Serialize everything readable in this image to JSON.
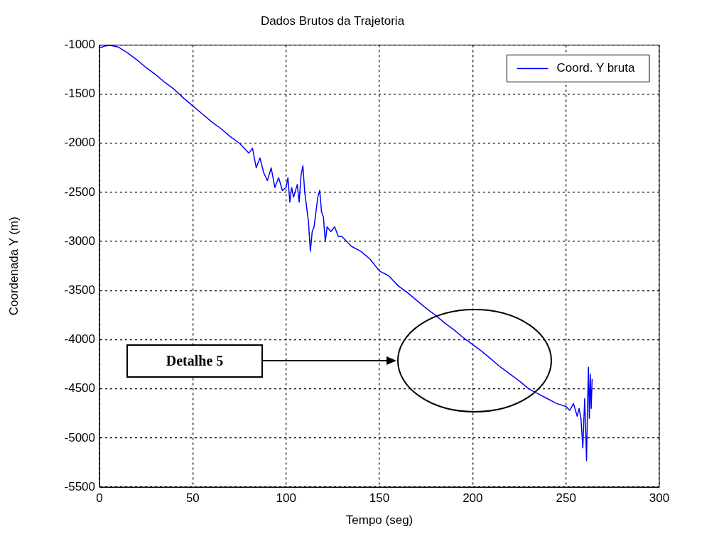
{
  "chart_data": {
    "type": "line",
    "title": "Dados Brutos da Trajetoria",
    "xlabel": "Tempo (seg)",
    "ylabel": "Coordenada Y (m)",
    "xlim": [
      0,
      300
    ],
    "xticks": [
      0,
      50,
      100,
      150,
      200,
      250,
      300
    ],
    "ylim": [
      -5500,
      -1000
    ],
    "yticks": [
      -5500,
      -5000,
      -4500,
      -4000,
      -3500,
      -3000,
      -2500,
      -2000,
      -1500,
      -1000
    ],
    "grid": true,
    "legend": "top right",
    "marker": "none",
    "line_style": "solid",
    "annotations": [
      "Detalhe 5"
    ],
    "series": [
      {
        "name": "Coord. Y bruta",
        "color": "#0000ff",
        "x": [
          0,
          3,
          6,
          10,
          15,
          20,
          25,
          30,
          35,
          40,
          45,
          50,
          55,
          60,
          65,
          70,
          75,
          80,
          82,
          84,
          86,
          88,
          90,
          92,
          94,
          96,
          98,
          100,
          101,
          102,
          103,
          104,
          106,
          107,
          108,
          109,
          110,
          111,
          112,
          113,
          114,
          115,
          116,
          117,
          118,
          119,
          120,
          121,
          122,
          124,
          126,
          128,
          130,
          135,
          140,
          145,
          150,
          155,
          160,
          165,
          170,
          175,
          180,
          185,
          190,
          195,
          200,
          205,
          210,
          215,
          220,
          225,
          230,
          235,
          240,
          245,
          250,
          252,
          254,
          256,
          257,
          258,
          259,
          260,
          260.5,
          261,
          261.5,
          262,
          262.5,
          263,
          263.5,
          264
        ],
        "values": [
          -1030,
          -1010,
          -1005,
          -1020,
          -1080,
          -1150,
          -1230,
          -1300,
          -1380,
          -1450,
          -1540,
          -1620,
          -1700,
          -1780,
          -1850,
          -1930,
          -2000,
          -2100,
          -2050,
          -2250,
          -2150,
          -2300,
          -2380,
          -2250,
          -2450,
          -2350,
          -2480,
          -2450,
          -2350,
          -2600,
          -2450,
          -2550,
          -2420,
          -2600,
          -2330,
          -2230,
          -2500,
          -2650,
          -2800,
          -3100,
          -2900,
          -2850,
          -2700,
          -2550,
          -2480,
          -2700,
          -2750,
          -3000,
          -2850,
          -2900,
          -2850,
          -2950,
          -2950,
          -3050,
          -3100,
          -3180,
          -3300,
          -3350,
          -3450,
          -3520,
          -3600,
          -3680,
          -3750,
          -3830,
          -3900,
          -3980,
          -4050,
          -4120,
          -4200,
          -4280,
          -4350,
          -4420,
          -4500,
          -4550,
          -4600,
          -4650,
          -4680,
          -4720,
          -4650,
          -4780,
          -4700,
          -4800,
          -5100,
          -4600,
          -4900,
          -5230,
          -4700,
          -4280,
          -4800,
          -4350,
          -4700,
          -4400
        ]
      }
    ]
  }
}
